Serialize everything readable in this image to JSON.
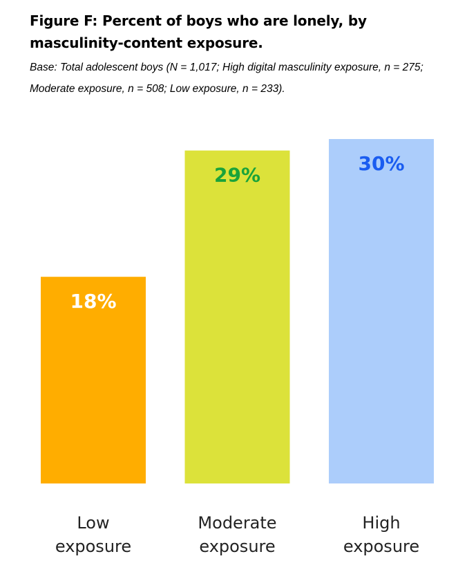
{
  "title": "Figure F: Percent of boys who are lonely, by masculinity-content exposure.",
  "subtitle": "Base: Total adolescent boys (N = 1,017; High digital masculinity exposure, n = 275; Moderate exposure, n = 508; Low exposure, n = 233).",
  "chart_data": {
    "type": "bar",
    "categories": [
      [
        "Low",
        "exposure"
      ],
      [
        "Moderate",
        "exposure"
      ],
      [
        "High",
        "exposure"
      ]
    ],
    "values": [
      18,
      29,
      30
    ],
    "value_labels": [
      "18%",
      "29%",
      "30%"
    ],
    "bar_colors": [
      "#ffad00",
      "#dce23a",
      "#accdfb"
    ],
    "label_colors": [
      "#ffffff",
      "#1aa33a",
      "#1a5cf0"
    ],
    "ylim": [
      0,
      30
    ],
    "grid": false,
    "legend": "none"
  }
}
